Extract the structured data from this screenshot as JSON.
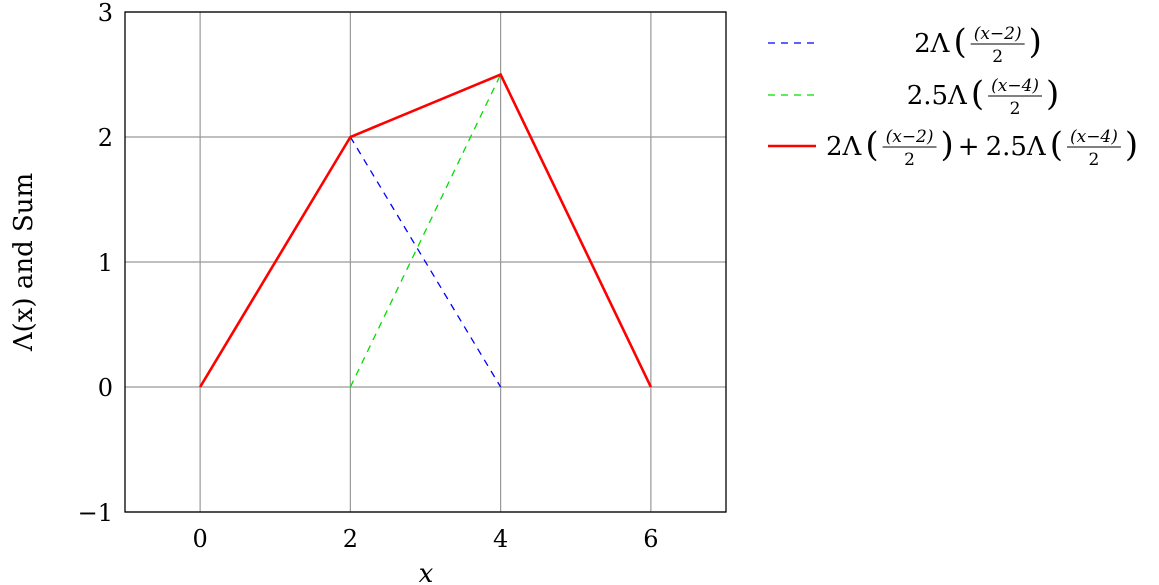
{
  "chart_data": {
    "type": "line",
    "title": "",
    "xlabel": "x",
    "ylabel": "Λ(x) and Sum",
    "xlim": [
      -1,
      7
    ],
    "ylim": [
      -1,
      3
    ],
    "xticks": [
      "0",
      "2",
      "4",
      "6"
    ],
    "yticks": [
      "−1",
      "0",
      "1",
      "2",
      "3"
    ],
    "grid": true,
    "legend_position": "outside-right-top",
    "series": [
      {
        "name": "2Λ((x−2)/2)",
        "color": "#0000ff",
        "style": "dashed",
        "x": [
          2,
          4
        ],
        "y": [
          2,
          0
        ]
      },
      {
        "name": "2.5Λ((x−4)/2)",
        "color": "#00dd00",
        "style": "dashed",
        "x": [
          2,
          4
        ],
        "y": [
          0,
          2.5
        ]
      },
      {
        "name": "2Λ((x−2)/2) + 2.5Λ((x−4)/2)",
        "color": "#ff0000",
        "style": "solid",
        "x": [
          0,
          2,
          4,
          6
        ],
        "y": [
          0,
          2,
          2.5,
          0
        ]
      }
    ]
  }
}
